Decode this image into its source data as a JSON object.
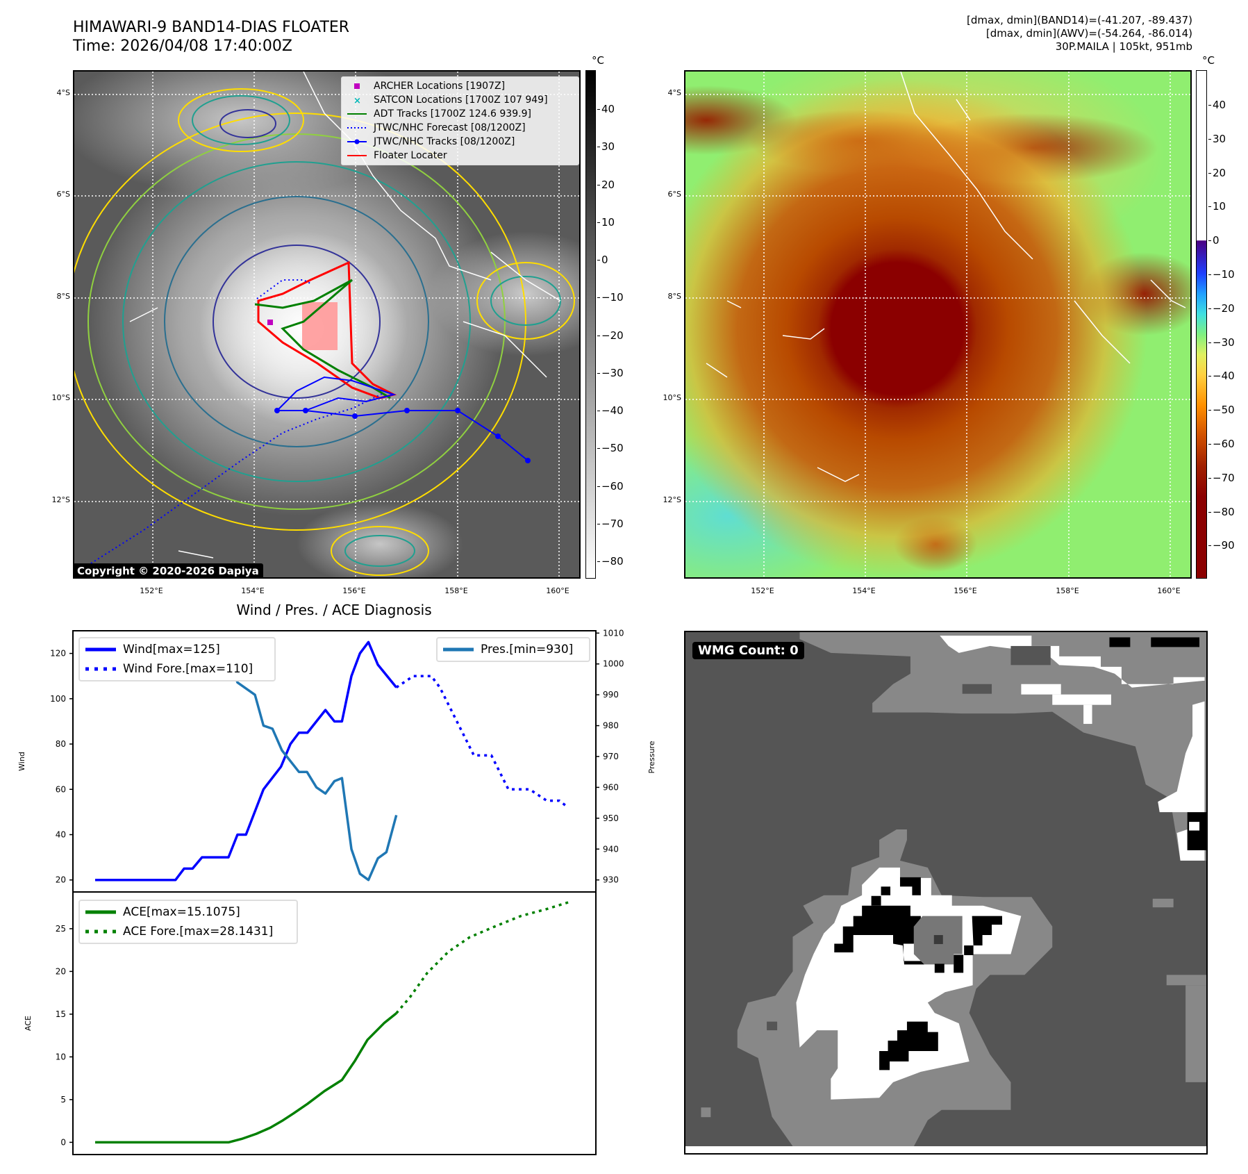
{
  "header": {
    "title_line1": "HIMAWARI-9 BAND14-DIAS FLOATER",
    "title_line2": "Time: 2026/04/08 17:40:00Z",
    "info_line1": "[dmax, dmin](BAND14)=(-41.207, -89.437)",
    "info_line2": "[dmax, dmin](AWV)=(-54.264, -86.014)",
    "info_line3": "30P.MAILA | 105kt, 951mb"
  },
  "map": {
    "lat_labels": [
      "4°S",
      "6°S",
      "8°S",
      "10°S",
      "12°S"
    ],
    "lon_labels": [
      "152°E",
      "154°E",
      "156°E",
      "158°E",
      "160°E"
    ],
    "copyright": "Copyright © 2020-2026 Dapiya",
    "legend": [
      {
        "label": "ARCHER Locations [1907Z]",
        "color": "#c000c0",
        "marker": "square"
      },
      {
        "label": "SATCON Locations [1700Z 107 949]",
        "color": "#00b8b8",
        "marker": "x"
      },
      {
        "label": "ADT Tracks [1700Z 124.6 939.9]",
        "color": "#008000",
        "marker": "line"
      },
      {
        "label": "JTWC/NHC Forecast [08/1200Z]",
        "color": "#0000ff",
        "marker": "dotted"
      },
      {
        "label": "JTWC/NHC Tracks [08/1200Z]",
        "color": "#0000ff",
        "marker": "line-dot"
      },
      {
        "label": "Floater Locater",
        "color": "#ff0000",
        "marker": "line"
      }
    ]
  },
  "colorbar_left": {
    "unit": "°C",
    "ticks": [
      "40",
      "30",
      "20",
      "10",
      "0",
      "−10",
      "−20",
      "−30",
      "−40",
      "−50",
      "−60",
      "−70",
      "−80"
    ]
  },
  "colorbar_right": {
    "unit": "°C",
    "ticks": [
      "40",
      "30",
      "20",
      "10",
      "0",
      "−10",
      "−20",
      "−30",
      "−40",
      "−50",
      "−60",
      "−70",
      "−80",
      "−90"
    ]
  },
  "wmg": {
    "label": "WMG Count: 0"
  },
  "chart_data": [
    {
      "type": "line",
      "title": "Wind / Pres. / ACE Diagnosis",
      "ylabel": "Wind",
      "ylabel_right": "Pressure",
      "xlim": [
        -4.7,
        105.9
      ],
      "ylim": [
        14.7,
        130
      ],
      "ylim_right": [
        926.1,
        1010.75
      ],
      "yticks": [
        20,
        40,
        60,
        80,
        100,
        120
      ],
      "yticks_right": [
        930,
        940,
        950,
        960,
        970,
        980,
        990,
        1000,
        1010
      ],
      "series": [
        {
          "name": "Wind[max=125]",
          "color": "#0000ff",
          "style": "solid",
          "axis": "left",
          "x": [
            0,
            17,
            18.8,
            20.6,
            22.6,
            28.2,
            30.1,
            31.9,
            35.6,
            39.3,
            41.3,
            43.1,
            44.9,
            48.7,
            50.6,
            52.2,
            54.2,
            56,
            57.8,
            59.8,
            63.7
          ],
          "y": [
            20,
            20,
            25,
            25,
            30,
            30,
            40,
            40,
            60,
            70,
            80,
            85,
            85,
            95,
            90,
            90,
            110,
            120,
            125,
            115,
            105
          ]
        },
        {
          "name": "Wind Fore.[max=110]",
          "color": "#0000ff",
          "style": "dotted",
          "axis": "left",
          "x": [
            63.7,
            67.3,
            71.1,
            72.9,
            80.1,
            83.8,
            87.4,
            91.9,
            95.5,
            98.2,
            100
          ],
          "y": [
            105,
            110,
            110,
            105,
            75,
            75,
            60,
            60,
            55,
            55,
            52
          ]
        },
        {
          "name": "Pres.[min=930]",
          "color": "#1f77b4",
          "style": "solid",
          "axis": "right",
          "x": [
            0,
            7.8,
            9.7,
            17,
            18.8,
            24.4,
            26.2,
            28.2,
            30.1,
            33.8,
            35.6,
            37.5,
            39.5,
            43.1,
            44.8,
            46.8,
            48.7,
            50.6,
            52.2,
            54.2,
            56,
            57.8,
            59.8,
            61.6,
            63.7
          ],
          "y": [
            1007,
            1007,
            1005,
            1005,
            1003,
            1003,
            1002,
            1002,
            994,
            990,
            980,
            979,
            972,
            965,
            965,
            960,
            958,
            962,
            963,
            940,
            932,
            930,
            937,
            939,
            951
          ]
        }
      ]
    },
    {
      "type": "line",
      "ylabel": "ACE",
      "xlim": [
        -4.7,
        105.9
      ],
      "ylim": [
        -1.43,
        29.3
      ],
      "yticks": [
        0,
        5,
        10,
        15,
        20,
        25
      ],
      "series": [
        {
          "name": "ACE[max=15.1075]",
          "color": "#008000",
          "style": "solid",
          "x": [
            0,
            28.2,
            31,
            34.1,
            37,
            39.5,
            42,
            44.9,
            48.5,
            52.2,
            54.9,
            57.6,
            61.2,
            63.7
          ],
          "y": [
            0,
            0,
            0.4,
            1,
            1.7,
            2.5,
            3.4,
            4.5,
            6,
            7.3,
            9.5,
            12,
            14,
            15.1075
          ]
        },
        {
          "name": "ACE Fore.[max=28.1431]",
          "color": "#008000",
          "style": "dotted",
          "x": [
            63.7,
            66.6,
            70.2,
            74.7,
            79.2,
            84.7,
            90.1,
            95.5,
            100.4
          ],
          "y": [
            15.1075,
            17,
            19.8,
            22.3,
            24,
            25.3,
            26.5,
            27.3,
            28.1431
          ]
        }
      ]
    }
  ]
}
